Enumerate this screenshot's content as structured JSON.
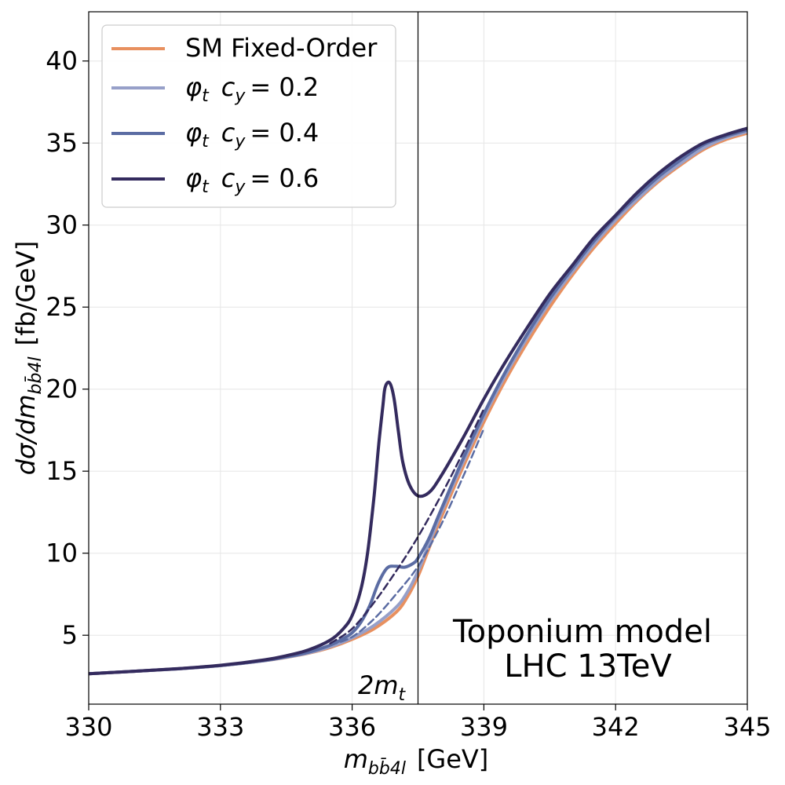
{
  "chart_data": {
    "type": "line",
    "title": "",
    "xlabel": "m_{b b̄ 4l}  [GeV]",
    "xlabel_parts": {
      "symbol": "m",
      "subscript": "bb̄4l",
      "unit": "[GeV]"
    },
    "ylabel": "dσ/dm_{b b̄ 4l}  [fb/GeV]",
    "ylabel_parts": {
      "symbol": "dσ/dm",
      "subscript": "bb̄4l",
      "unit": "[fb/GeV]"
    },
    "xlim": [
      330,
      345
    ],
    "ylim": [
      0.8,
      43
    ],
    "xticks": [
      330,
      333,
      336,
      339,
      342,
      345
    ],
    "yticks": [
      5,
      10,
      15,
      20,
      25,
      30,
      35,
      40
    ],
    "grid": true,
    "legend_placement": "top-left",
    "legend": [
      {
        "label": "SM Fixed-Order",
        "color": "#e8905f",
        "style": "solid"
      },
      {
        "label": "φ_t  c_y = 0.2",
        "phi": "φ",
        "phi_sub": "t",
        "cy": "c",
        "cy_sub": "y",
        "cy_value": "= 0.2",
        "color": "#97a0c9",
        "style": "solid"
      },
      {
        "label": "φ_t  c_y = 0.4",
        "phi": "φ",
        "phi_sub": "t",
        "cy": "c",
        "cy_sub": "y",
        "cy_value": "= 0.4",
        "color": "#5b6ca3",
        "style": "solid"
      },
      {
        "label": "φ_t  c_y = 0.6",
        "phi": "φ",
        "phi_sub": "t",
        "cy": "c",
        "cy_sub": "y",
        "cy_value": "= 0.6",
        "color": "#342b5e",
        "style": "solid"
      }
    ],
    "vline": {
      "x": 337.5,
      "label": "2m_t",
      "label_main": "2m",
      "label_sub": "t"
    },
    "annotation": {
      "line1": "Toponium model",
      "line2": "LHC 13TeV"
    },
    "series": [
      {
        "name": "SM Fixed-Order",
        "color": "#e8905f",
        "width": 4,
        "dash": "",
        "points": [
          [
            330,
            2.65
          ],
          [
            331,
            2.8
          ],
          [
            332,
            2.95
          ],
          [
            333,
            3.15
          ],
          [
            334,
            3.45
          ],
          [
            334.5,
            3.65
          ],
          [
            335,
            3.9
          ],
          [
            335.5,
            4.25
          ],
          [
            336,
            4.75
          ],
          [
            336.5,
            5.4
          ],
          [
            337,
            6.4
          ],
          [
            337.25,
            7.3
          ],
          [
            337.5,
            8.6
          ],
          [
            337.75,
            10.3
          ],
          [
            338,
            12.0
          ],
          [
            338.5,
            15.1
          ],
          [
            339,
            18.0
          ],
          [
            339.5,
            20.6
          ],
          [
            340,
            22.9
          ],
          [
            340.5,
            25.0
          ],
          [
            341,
            26.9
          ],
          [
            341.5,
            28.6
          ],
          [
            342,
            30.1
          ],
          [
            342.5,
            31.5
          ],
          [
            343,
            32.7
          ],
          [
            343.5,
            33.7
          ],
          [
            344,
            34.6
          ],
          [
            344.5,
            35.2
          ],
          [
            345,
            35.6
          ]
        ]
      },
      {
        "name": "φ_t c_y=0.2",
        "color": "#97a0c9",
        "width": 4,
        "dash": "",
        "points": [
          [
            330,
            2.65
          ],
          [
            331,
            2.8
          ],
          [
            332,
            2.95
          ],
          [
            333,
            3.15
          ],
          [
            334,
            3.45
          ],
          [
            334.5,
            3.66
          ],
          [
            335,
            3.92
          ],
          [
            335.5,
            4.3
          ],
          [
            336,
            4.85
          ],
          [
            336.5,
            5.6
          ],
          [
            337,
            6.7
          ],
          [
            337.25,
            7.6
          ],
          [
            337.5,
            8.9
          ],
          [
            337.75,
            10.6
          ],
          [
            338,
            12.3
          ],
          [
            338.5,
            15.4
          ],
          [
            339,
            18.3
          ],
          [
            339.5,
            20.9
          ],
          [
            340,
            23.2
          ],
          [
            340.5,
            25.3
          ],
          [
            341,
            27.1
          ],
          [
            341.5,
            28.8
          ],
          [
            342,
            30.3
          ],
          [
            342.5,
            31.6
          ],
          [
            343,
            32.8
          ],
          [
            343.5,
            33.8
          ],
          [
            344,
            34.7
          ],
          [
            344.5,
            35.3
          ],
          [
            345,
            35.7
          ]
        ]
      },
      {
        "name": "φ_t c_y=0.4",
        "color": "#5b6ca3",
        "width": 4,
        "dash": "",
        "points": [
          [
            330,
            2.65
          ],
          [
            331,
            2.8
          ],
          [
            332,
            2.95
          ],
          [
            333,
            3.15
          ],
          [
            334,
            3.46
          ],
          [
            334.5,
            3.68
          ],
          [
            335,
            3.96
          ],
          [
            335.5,
            4.4
          ],
          [
            335.8,
            4.8
          ],
          [
            336,
            5.15
          ],
          [
            336.2,
            5.8
          ],
          [
            336.4,
            6.8
          ],
          [
            336.6,
            8.2
          ],
          [
            336.8,
            9.1
          ],
          [
            337,
            9.2
          ],
          [
            337.2,
            9.15
          ],
          [
            337.4,
            9.4
          ],
          [
            337.5,
            9.7
          ],
          [
            337.75,
            10.9
          ],
          [
            338,
            12.5
          ],
          [
            338.5,
            15.6
          ],
          [
            339,
            18.5
          ],
          [
            339.5,
            21.1
          ],
          [
            340,
            23.4
          ],
          [
            340.5,
            25.5
          ],
          [
            341,
            27.3
          ],
          [
            341.5,
            29.0
          ],
          [
            342,
            30.5
          ],
          [
            342.5,
            31.8
          ],
          [
            343,
            33.0
          ],
          [
            343.5,
            34.0
          ],
          [
            344,
            34.9
          ],
          [
            344.5,
            35.4
          ],
          [
            345,
            35.8
          ]
        ]
      },
      {
        "name": "φ_t c_y=0.4 (dashed)",
        "color": "#5b6ca3",
        "width": 2.5,
        "dash": "9,5",
        "points": [
          [
            335.5,
            4.4
          ],
          [
            336,
            4.9
          ],
          [
            336.5,
            6.0
          ],
          [
            337,
            7.5
          ],
          [
            337.5,
            9.2
          ],
          [
            338,
            11.6
          ],
          [
            338.5,
            14.5
          ],
          [
            339,
            17.6
          ]
        ]
      },
      {
        "name": "φ_t c_y=0.6",
        "color": "#342b5e",
        "width": 4,
        "dash": "",
        "points": [
          [
            330,
            2.65
          ],
          [
            331,
            2.8
          ],
          [
            332,
            2.96
          ],
          [
            333,
            3.17
          ],
          [
            334,
            3.5
          ],
          [
            334.5,
            3.75
          ],
          [
            335,
            4.1
          ],
          [
            335.5,
            4.7
          ],
          [
            335.8,
            5.4
          ],
          [
            336,
            6.2
          ],
          [
            336.2,
            7.8
          ],
          [
            336.35,
            10.0
          ],
          [
            336.5,
            13.5
          ],
          [
            336.6,
            16.5
          ],
          [
            336.7,
            19.0
          ],
          [
            336.75,
            20.1
          ],
          [
            336.85,
            20.4
          ],
          [
            336.95,
            19.5
          ],
          [
            337.05,
            17.5
          ],
          [
            337.15,
            15.6
          ],
          [
            337.3,
            14.2
          ],
          [
            337.5,
            13.5
          ],
          [
            337.75,
            13.7
          ],
          [
            338,
            14.6
          ],
          [
            338.5,
            16.9
          ],
          [
            339,
            19.4
          ],
          [
            339.5,
            21.7
          ],
          [
            340,
            23.8
          ],
          [
            340.5,
            25.8
          ],
          [
            341,
            27.5
          ],
          [
            341.5,
            29.2
          ],
          [
            342,
            30.6
          ],
          [
            342.5,
            32.0
          ],
          [
            343,
            33.2
          ],
          [
            343.5,
            34.2
          ],
          [
            344,
            35.0
          ],
          [
            344.5,
            35.5
          ],
          [
            345,
            35.9
          ]
        ]
      },
      {
        "name": "φ_t c_y=0.6 (dashed)",
        "color": "#342b5e",
        "width": 2.5,
        "dash": "9,5",
        "points": [
          [
            335.5,
            4.5
          ],
          [
            336,
            5.4
          ],
          [
            336.5,
            7.0
          ],
          [
            337,
            8.9
          ],
          [
            337.5,
            11.0
          ],
          [
            338,
            13.4
          ],
          [
            338.5,
            16.0
          ],
          [
            339,
            18.8
          ]
        ]
      }
    ]
  }
}
